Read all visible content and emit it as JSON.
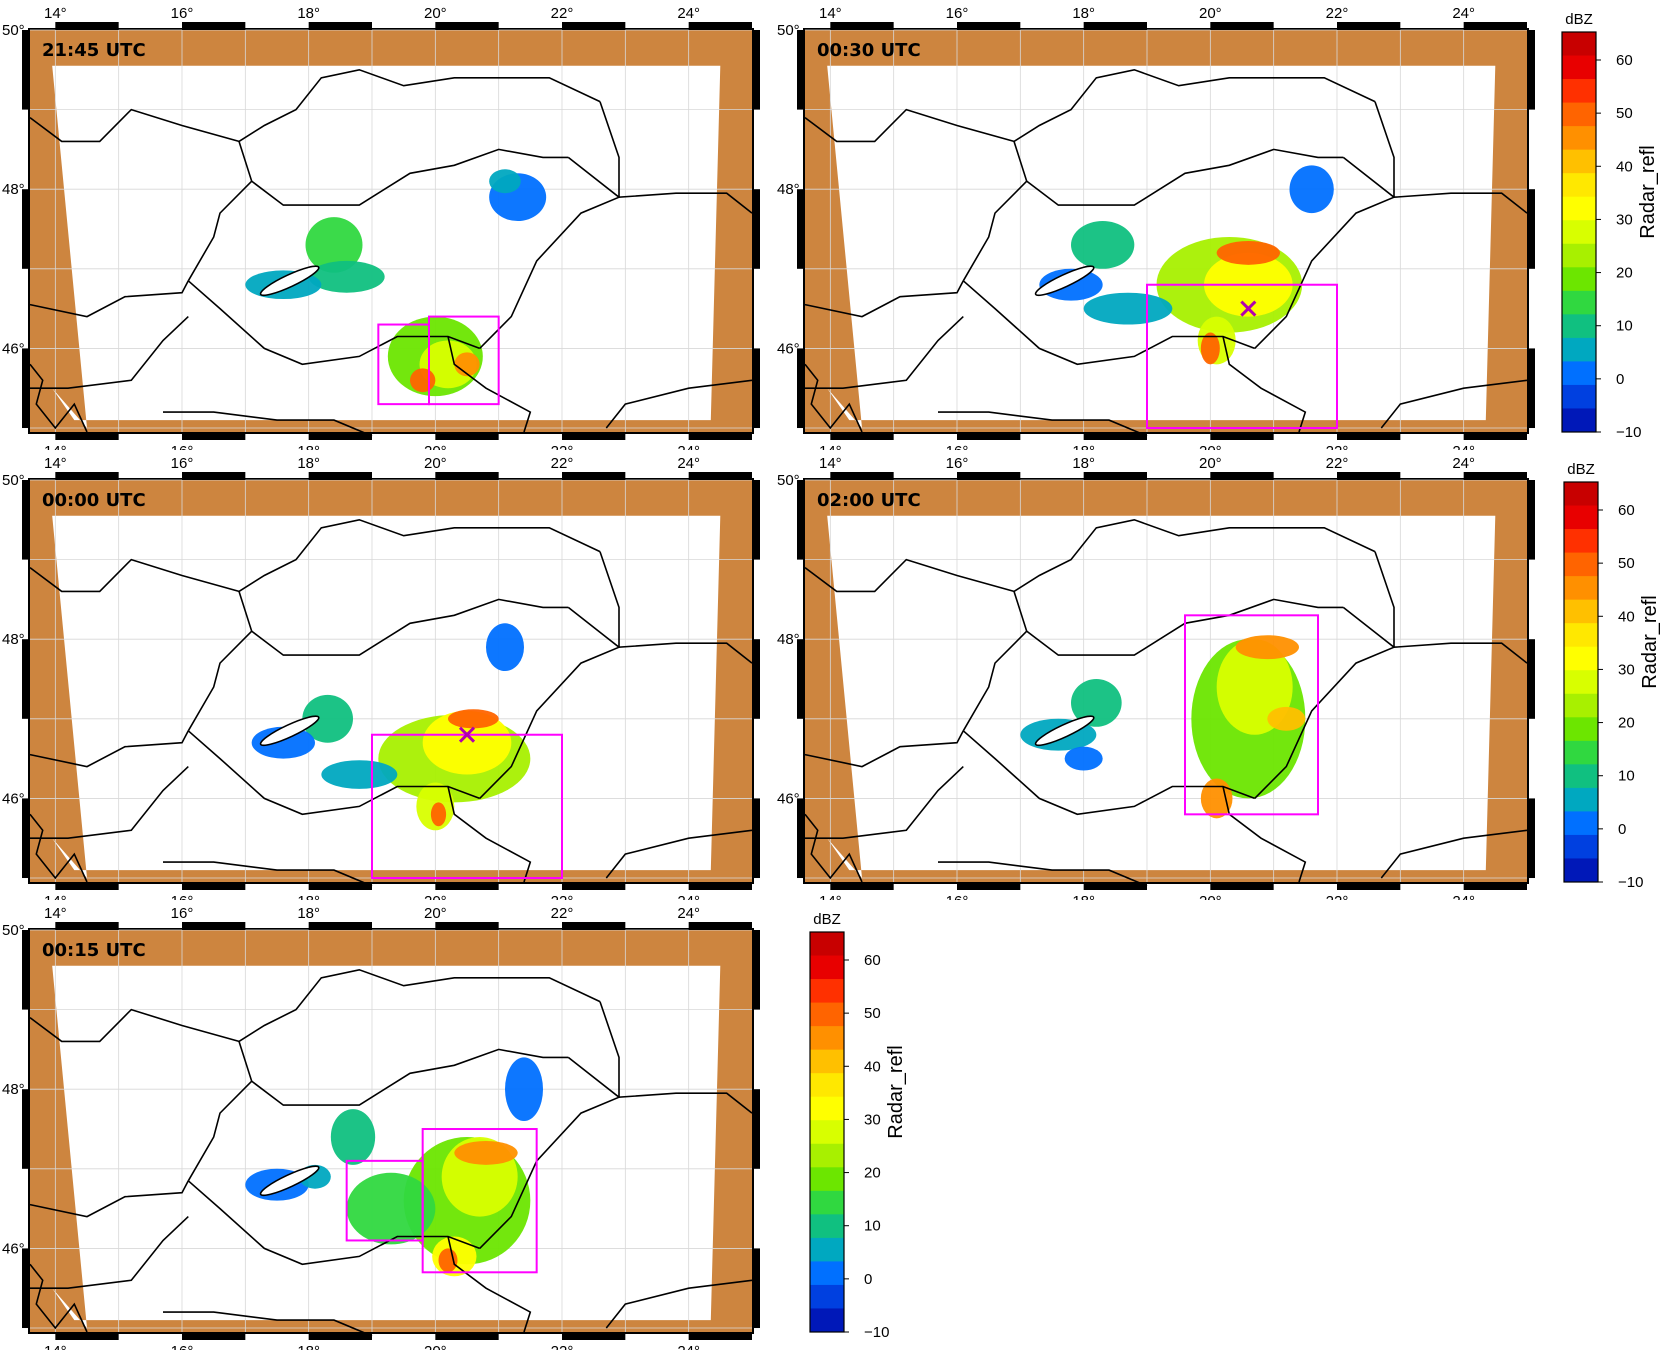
{
  "panels": [
    {
      "id": "p1",
      "time_label": "21:45 UTC",
      "lon_ticks": [
        "14°",
        "16°",
        "18°",
        "20°",
        "22°",
        "24°"
      ],
      "lat_ticks": [
        "50°",
        "48°",
        "46°"
      ],
      "boxes": [
        {
          "lon": [
            19.1,
            19.9
          ],
          "lat": [
            45.3,
            46.3
          ]
        },
        {
          "lon": [
            19.9,
            21.0
          ],
          "lat": [
            45.3,
            46.4
          ]
        }
      ],
      "marker": null
    },
    {
      "id": "p2",
      "time_label": "00:30 UTC",
      "lon_ticks": [
        "14°",
        "16°",
        "18°",
        "20°",
        "22°",
        "24°"
      ],
      "lat_ticks": [
        "50°",
        "48°",
        "46°"
      ],
      "boxes": [
        {
          "lon": [
            19.0,
            22.0
          ],
          "lat": [
            45.0,
            46.8
          ]
        }
      ],
      "marker": {
        "lon": 20.6,
        "lat": 46.5
      }
    },
    {
      "id": "p3",
      "time_label": "00:00 UTC",
      "lon_ticks": [
        "14°",
        "16°",
        "18°",
        "20°",
        "22°",
        "24°"
      ],
      "lat_ticks": [
        "50°",
        "48°",
        "46°"
      ],
      "boxes": [
        {
          "lon": [
            19.0,
            22.0
          ],
          "lat": [
            45.0,
            46.8
          ]
        }
      ],
      "marker": {
        "lon": 20.5,
        "lat": 46.8
      }
    },
    {
      "id": "p4",
      "time_label": "02:00 UTC",
      "lon_ticks": [
        "14°",
        "16°",
        "18°",
        "20°",
        "22°",
        "24°"
      ],
      "lat_ticks": [
        "50°",
        "48°",
        "46°"
      ],
      "boxes": [
        {
          "lon": [
            19.6,
            21.7
          ],
          "lat": [
            45.8,
            48.3
          ]
        }
      ],
      "marker": null
    },
    {
      "id": "p5",
      "time_label": "00:15 UTC",
      "lon_ticks": [
        "14°",
        "16°",
        "18°",
        "20°",
        "22°",
        "24°"
      ],
      "lat_ticks": [
        "50°",
        "48°",
        "46°"
      ],
      "boxes": [
        {
          "lon": [
            18.6,
            19.8
          ],
          "lat": [
            46.1,
            47.1
          ]
        },
        {
          "lon": [
            19.8,
            21.6
          ],
          "lat": [
            45.7,
            47.5
          ]
        }
      ],
      "marker": null
    }
  ],
  "colorbar": {
    "unit": "dBZ",
    "label": "Radar_refl",
    "ticks": [
      "60",
      "50",
      "40",
      "30",
      "20",
      "10",
      "0",
      "−10"
    ],
    "colors": [
      "#c80000",
      "#e80000",
      "#ff3000",
      "#ff6400",
      "#ff9000",
      "#ffc000",
      "#ffe800",
      "#ffff00",
      "#d8ff00",
      "#a8f000",
      "#6ce600",
      "#30d840",
      "#10c080",
      "#00a8c0",
      "#0070ff",
      "#0040e0",
      "#0018b8"
    ]
  },
  "colors": {
    "outside": "#cd853f",
    "domain": "#ffffff",
    "border": "#000000",
    "box": "#ff00ff",
    "marker": "#b000b0"
  }
}
